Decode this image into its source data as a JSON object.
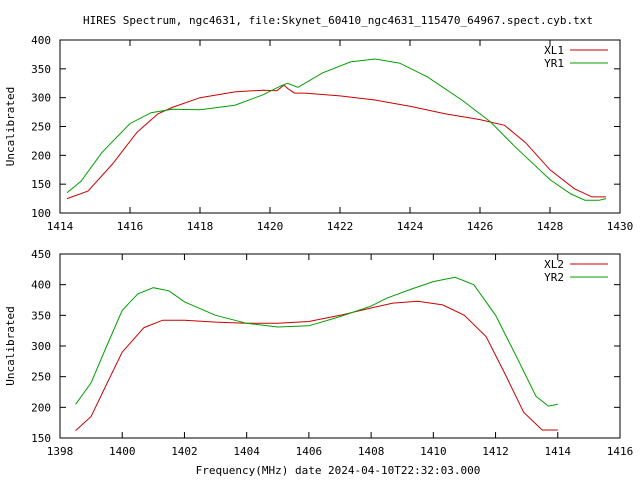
{
  "title": "HIRES Spectrum, ngc4631, file:Skynet_60410_ngc4631_115470_64967.spect.cyb.txt",
  "xlabel_bottom": "Frequency(MHz) date 2024-04-10T22:32:03.000",
  "colors": {
    "red": "#cc0000",
    "green": "#00a000",
    "axis": "#000000"
  },
  "chart_data": [
    {
      "type": "line",
      "ylabel": "Uncalibrated",
      "xlim": [
        1414,
        1430
      ],
      "ylim": [
        100,
        400
      ],
      "xticks": [
        1414,
        1416,
        1418,
        1420,
        1422,
        1424,
        1426,
        1428,
        1430
      ],
      "yticks": [
        100,
        150,
        200,
        250,
        300,
        350,
        400
      ],
      "legend_position": "top-right",
      "series": [
        {
          "name": "XL1",
          "color": "#cc0000",
          "x": [
            1414.2,
            1414.8,
            1415.5,
            1416.2,
            1416.8,
            1417.2,
            1418.0,
            1419.0,
            1419.8,
            1420.2,
            1420.4,
            1420.5,
            1420.7,
            1421.0,
            1422.0,
            1423.0,
            1424.0,
            1425.0,
            1426.0,
            1426.7,
            1427.3,
            1428.0,
            1428.7,
            1429.2,
            1429.6
          ],
          "y": [
            125,
            138,
            185,
            240,
            272,
            283,
            300,
            310,
            313,
            312,
            322,
            316,
            308,
            308,
            303,
            296,
            285,
            272,
            262,
            252,
            222,
            175,
            142,
            128,
            128
          ]
        },
        {
          "name": "YR1",
          "color": "#00a000",
          "x": [
            1414.2,
            1414.6,
            1415.2,
            1416.0,
            1416.6,
            1417.2,
            1418.0,
            1419.0,
            1419.8,
            1420.3,
            1420.5,
            1420.8,
            1421.5,
            1422.3,
            1423.0,
            1423.7,
            1424.5,
            1425.5,
            1426.3,
            1427.0,
            1428.0,
            1428.6,
            1429.0,
            1429.4,
            1429.6
          ],
          "y": [
            135,
            155,
            205,
            255,
            274,
            280,
            279,
            287,
            305,
            320,
            325,
            318,
            343,
            362,
            367,
            360,
            336,
            295,
            258,
            215,
            158,
            133,
            122,
            122,
            125
          ]
        }
      ]
    },
    {
      "type": "line",
      "ylabel": "Uncalibrated",
      "xlim": [
        1398,
        1416
      ],
      "ylim": [
        150,
        450
      ],
      "xticks": [
        1398,
        1400,
        1402,
        1404,
        1406,
        1408,
        1410,
        1412,
        1414,
        1416
      ],
      "yticks": [
        150,
        200,
        250,
        300,
        350,
        400,
        450
      ],
      "legend_position": "top-right",
      "series": [
        {
          "name": "XL2",
          "color": "#cc0000",
          "x": [
            1398.5,
            1399.0,
            1399.5,
            1400.0,
            1400.7,
            1401.3,
            1402.0,
            1403.0,
            1404.0,
            1405.0,
            1406.0,
            1407.0,
            1408.0,
            1408.7,
            1409.5,
            1410.3,
            1411.0,
            1411.7,
            1412.3,
            1412.9,
            1413.5,
            1414.0
          ],
          "y": [
            162,
            185,
            238,
            290,
            330,
            342,
            342,
            339,
            337,
            337,
            340,
            350,
            362,
            370,
            373,
            367,
            350,
            315,
            255,
            192,
            163,
            163
          ]
        },
        {
          "name": "YR2",
          "color": "#00a000",
          "x": [
            1398.5,
            1399.0,
            1399.5,
            1400.0,
            1400.5,
            1401.0,
            1401.5,
            1402.0,
            1403.0,
            1404.0,
            1405.0,
            1406.0,
            1407.0,
            1408.0,
            1408.5,
            1409.3,
            1410.0,
            1410.7,
            1411.3,
            1412.0,
            1412.7,
            1413.3,
            1413.7,
            1414.0
          ],
          "y": [
            205,
            240,
            300,
            358,
            385,
            395,
            390,
            372,
            350,
            337,
            331,
            333,
            348,
            365,
            378,
            393,
            405,
            412,
            400,
            350,
            280,
            218,
            202,
            205
          ]
        }
      ]
    }
  ]
}
